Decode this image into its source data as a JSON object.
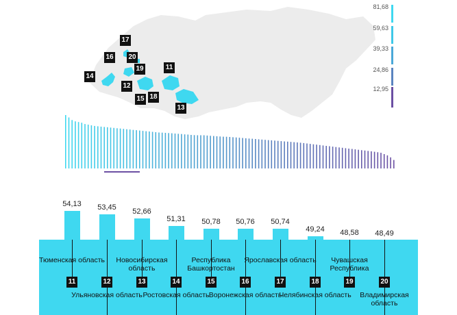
{
  "chart_data": {
    "type": "bar",
    "title": "",
    "legend_scale": [
      "81,68",
      "59,63",
      "39,33",
      "24,86",
      "12,95"
    ],
    "colors": {
      "bar": "#3fd8f0",
      "bar_end": "#6b4fa3",
      "panel": "#3fd8f0",
      "map": "#ececec",
      "highlight": "#3fd8f0",
      "underline": "#6b4fa3"
    },
    "categories": [
      "Тюменская область",
      "Ульяновская область",
      "Новосибирская область",
      "Ростовская область",
      "Республика Башкортостан",
      "Воронежская область",
      "Ярославская область",
      "Челябинская область",
      "Чувашская Республика",
      "Владимирская область"
    ],
    "ranks": [
      "11",
      "12",
      "13",
      "14",
      "15",
      "16",
      "17",
      "18",
      "19",
      "20"
    ],
    "value_labels": [
      "54,13",
      "53,45",
      "52,66",
      "51,31",
      "50,78",
      "50,76",
      "50,74",
      "49,24",
      "48,58",
      "48,49"
    ],
    "values": [
      54.13,
      53.45,
      52.66,
      51.31,
      50.78,
      50.76,
      50.74,
      49.24,
      48.58,
      48.49
    ],
    "overview_values": [
      81.68,
      78,
      74,
      72,
      71,
      70,
      68,
      67,
      66,
      65,
      64.5,
      64,
      63.5,
      63,
      62.5,
      62,
      61.5,
      61,
      60.5,
      60,
      59.63,
      59,
      58.5,
      58,
      57.5,
      57,
      56.5,
      56,
      55.5,
      55,
      54.8,
      54.5,
      54.13,
      53.8,
      53.45,
      53,
      52.66,
      52.2,
      51.8,
      51.31,
      51,
      50.78,
      50.76,
      50.74,
      50.4,
      50,
      49.6,
      49.24,
      48.9,
      48.58,
      48.49,
      48.2,
      47.8,
      47.4,
      47,
      46.6,
      46.2,
      45.8,
      45.4,
      45,
      44.6,
      44.2,
      43.8,
      43.4,
      43,
      42.6,
      42.2,
      41.8,
      41.4,
      41,
      40.6,
      40.2,
      39.8,
      39.33,
      38.8,
      38.2,
      37.6,
      37,
      36.4,
      35.8,
      35.2,
      34.6,
      34,
      33.4,
      32.8,
      32.2,
      31.6,
      31,
      30.4,
      29.8,
      29.2,
      28.6,
      28,
      27.4,
      26.8,
      26.2,
      25.6,
      24.86,
      24,
      22,
      20,
      17,
      12.95
    ]
  }
}
